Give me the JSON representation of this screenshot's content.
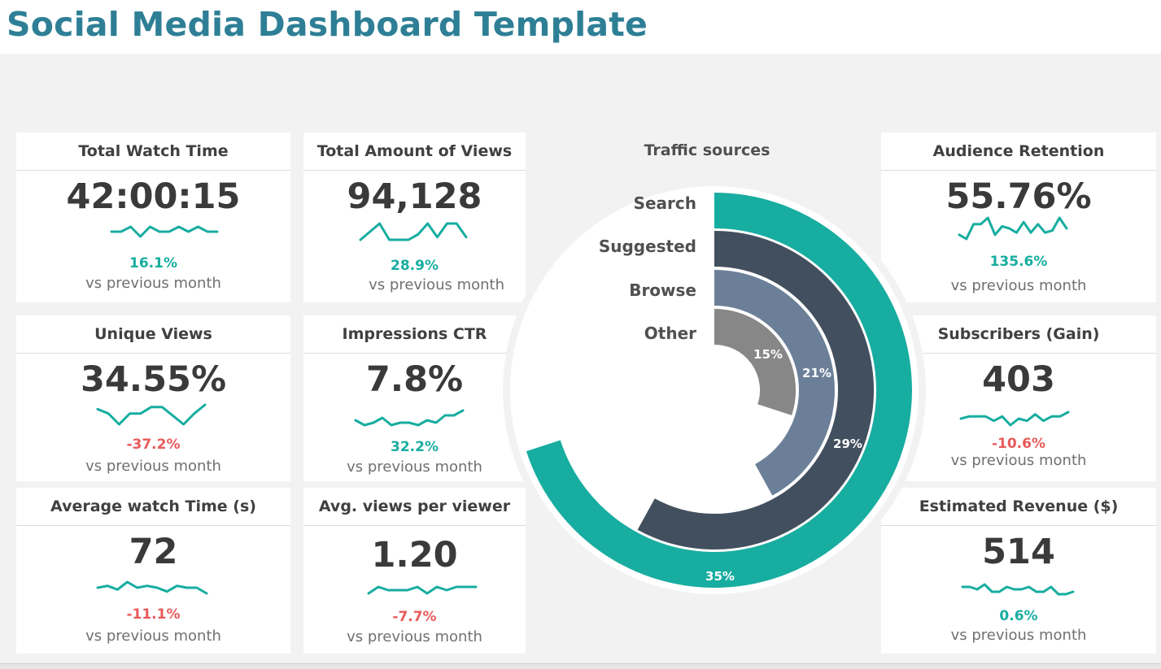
{
  "title": "Social Media Dashboard Template",
  "colors": {
    "accent": "#17ada0",
    "title": "#2e7f96",
    "negative": "#e85a5a",
    "dark_slate": "#424f5e",
    "slate_blue": "#6b8098",
    "gray": "#878787"
  },
  "cards": [
    {
      "name": "total-watch-time",
      "label": "Total Watch Time",
      "value": "42:00:15",
      "change": "16.1%",
      "direction": "up",
      "vs": "vs previous month",
      "spark": [
        4,
        4,
        5,
        3,
        5,
        4,
        4,
        5,
        4,
        5,
        4,
        4
      ]
    },
    {
      "name": "total-amount-of-views",
      "label": "Total Amount of Views",
      "value": "94,128",
      "change": "28.9%",
      "direction": "up",
      "vs": "vs previous month",
      "spark": [
        3,
        6,
        9,
        3,
        3,
        3,
        5,
        9,
        4,
        9,
        9,
        4
      ]
    },
    {
      "name": "audience-retention",
      "label": "Audience Retention",
      "value": "55.76%",
      "change": "135.6%",
      "direction": "up",
      "vs": "vs previous month",
      "spark": [
        3,
        1,
        8,
        8,
        11,
        3,
        7,
        6,
        4,
        9,
        4,
        8,
        4,
        5,
        11,
        6
      ]
    },
    {
      "name": "unique-views",
      "label": "Unique Views",
      "value": "34.55%",
      "change": "-37.2%",
      "direction": "down",
      "vs": "vs previous month",
      "spark": [
        8,
        6,
        1,
        6,
        6,
        9,
        9,
        5,
        1,
        6,
        10
      ]
    },
    {
      "name": "impressions-ctr",
      "label": "Impressions CTR",
      "value": "7.8%",
      "change": "32.2%",
      "direction": "up",
      "vs": "vs previous month",
      "spark": [
        4,
        2,
        3,
        5,
        2,
        3,
        3,
        2,
        4,
        3,
        6,
        6,
        8
      ]
    },
    {
      "name": "subscribers-gain",
      "label": "Subscribers (Gain)",
      "value": "403",
      "change": "-10.6%",
      "direction": "down",
      "vs": "vs previous month",
      "spark": [
        4,
        5,
        5,
        5,
        3,
        5,
        1,
        4,
        3,
        6,
        3,
        5,
        5,
        7
      ]
    },
    {
      "name": "average-watch-time",
      "label": "Average watch Time (s)",
      "value": "72",
      "change": "-11.1%",
      "direction": "down",
      "vs": "vs previous month",
      "spark": [
        4,
        5,
        3,
        7,
        4,
        5,
        4,
        2,
        5,
        4,
        4,
        1
      ]
    },
    {
      "name": "avg-views-per-viewer",
      "label": "Avg. views per viewer",
      "value": "1.20",
      "change": "-7.7%",
      "direction": "down",
      "vs": "vs previous month",
      "spark": [
        3,
        5,
        4,
        4,
        4,
        5,
        3,
        5,
        4,
        5,
        5,
        5
      ]
    },
    {
      "name": "estimated-revenue",
      "label": "Estimated Revenue ($)",
      "value": "514",
      "change": "0.6%",
      "direction": "up",
      "vs": "vs previous month",
      "spark": [
        5,
        5,
        4,
        6,
        3,
        3,
        5,
        4,
        4,
        5,
        3,
        3,
        5,
        2,
        2,
        3
      ]
    }
  ],
  "traffic": {
    "title": "Traffic sources",
    "sources": [
      {
        "label": "Search",
        "value": 35,
        "pct_label": "35%",
        "color": "#17ada0"
      },
      {
        "label": "Suggested",
        "value": 29,
        "pct_label": "29%",
        "color": "#424f5e"
      },
      {
        "label": "Browse",
        "value": 21,
        "pct_label": "21%",
        "color": "#6b8098"
      },
      {
        "label": "Other",
        "value": 15,
        "pct_label": "15%",
        "color": "#878787"
      }
    ]
  }
}
